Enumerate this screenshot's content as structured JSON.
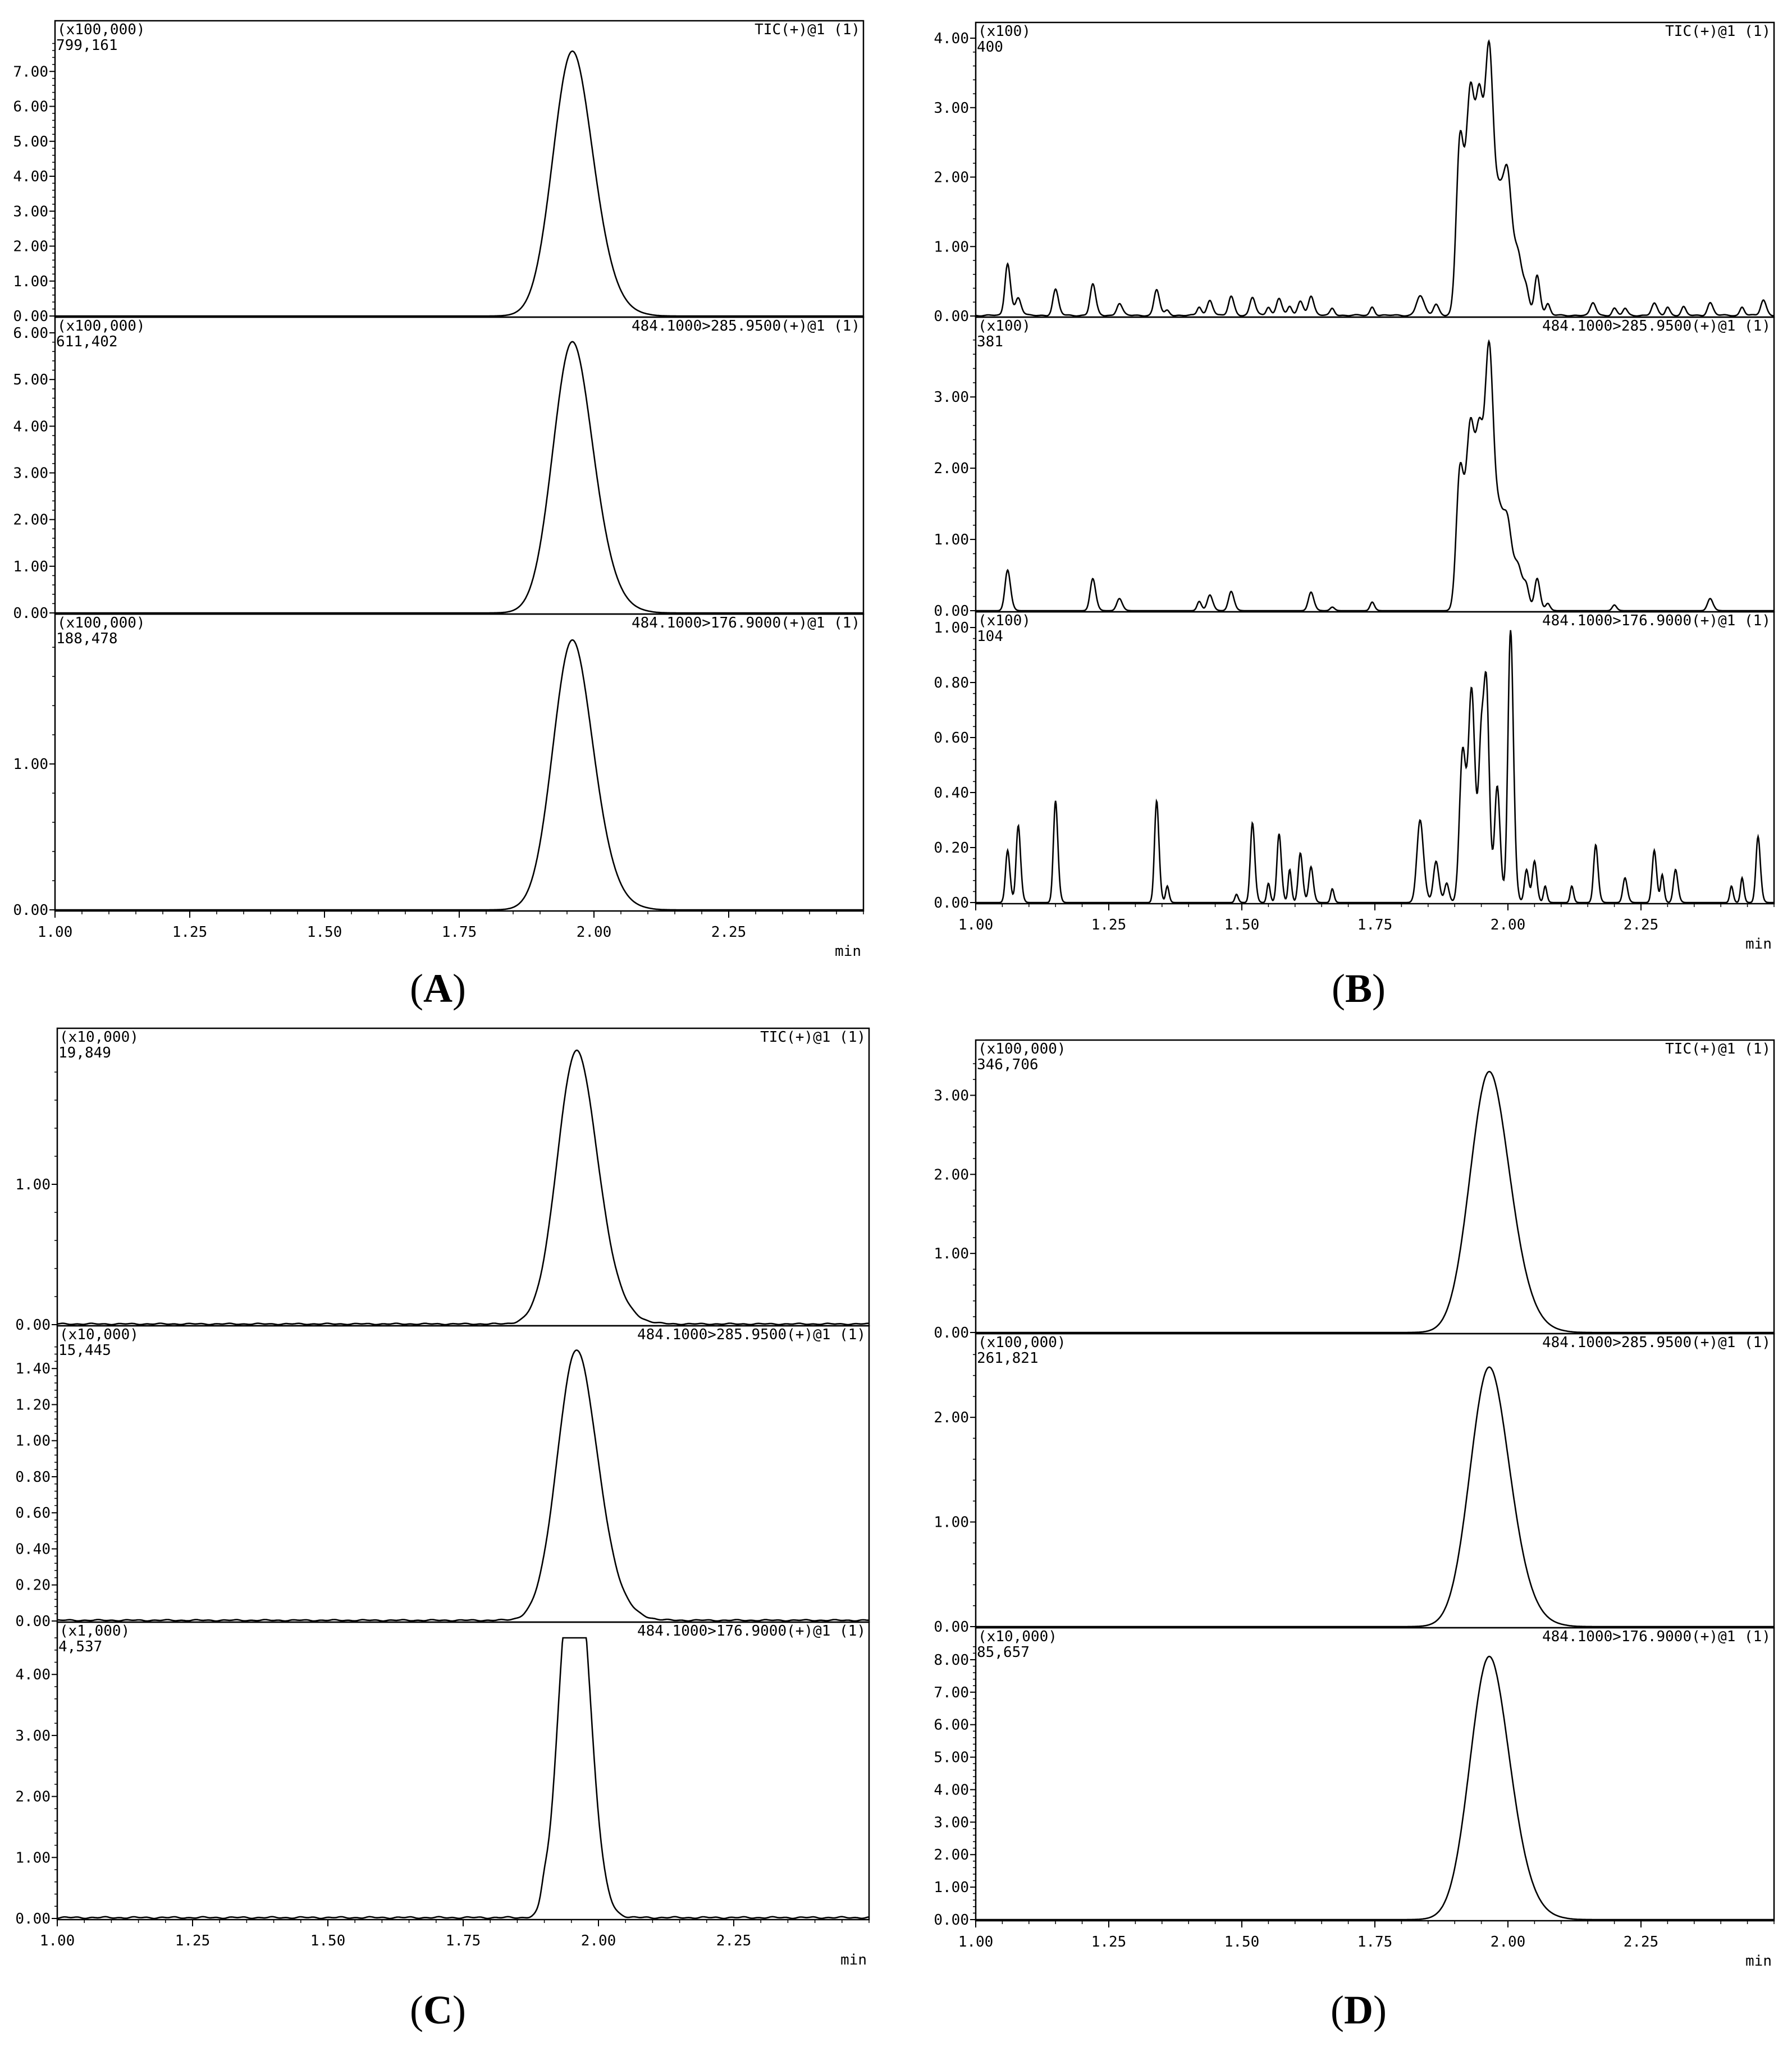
{
  "chart_data": [
    {
      "type": "line",
      "panel_label": "A",
      "x_unit": "min",
      "xlim": [
        1.0,
        2.5
      ],
      "x_ticks": [
        "1.00",
        "1.25",
        "1.50",
        "1.75",
        "2.00",
        "2.25"
      ],
      "grid": false,
      "subplots": [
        {
          "multiplier": "(x100,000)",
          "max_intensity": "799,161",
          "channel": "TIC(+)@1 (1)",
          "ylim": [
            0,
            8.0
          ],
          "y_ticks": [
            "0.00",
            "1.00",
            "2.00",
            "3.00",
            "4.00",
            "5.00",
            "6.00",
            "7.00"
          ],
          "peaks": [
            {
              "rt": 1.96,
              "height": 7.58,
              "width": 0.036
            }
          ],
          "noise": 0
        },
        {
          "multiplier": "(x100,000)",
          "max_intensity": "611,402",
          "channel": "484.1000>285.9500(+)@1 (1)",
          "ylim": [
            0,
            6.0
          ],
          "y_ticks": [
            "0.00",
            "1.00",
            "2.00",
            "3.00",
            "4.00",
            "5.00",
            "6.00"
          ],
          "peaks": [
            {
              "rt": 1.96,
              "height": 5.81,
              "width": 0.036
            }
          ],
          "noise": 0
        },
        {
          "multiplier": "(x100,000)",
          "max_intensity": "188,478",
          "channel": "484.1000>176.9000(+)@1 (1)",
          "ylim": [
            0,
            1.92
          ],
          "y_ticks": [
            "0.00",
            "1.00"
          ],
          "peaks": [
            {
              "rt": 1.96,
              "height": 1.85,
              "width": 0.036
            }
          ],
          "noise": 0
        }
      ]
    },
    {
      "type": "line",
      "panel_label": "B",
      "x_unit": "min",
      "xlim": [
        1.0,
        2.5
      ],
      "x_ticks": [
        "1.00",
        "1.25",
        "1.50",
        "1.75",
        "2.00",
        "2.25"
      ],
      "grid": false,
      "subplots": [
        {
          "multiplier": "(x100)",
          "max_intensity": "400",
          "channel": "TIC(+)@1 (1)",
          "ylim": [
            0,
            4.0
          ],
          "y_ticks": [
            "0.00",
            "1.00",
            "2.00",
            "3.00",
            "4.00"
          ],
          "peaks": [
            {
              "rt": 1.06,
              "height": 0.75,
              "width": 0.005
            },
            {
              "rt": 1.08,
              "height": 0.25,
              "width": 0.005
            },
            {
              "rt": 1.15,
              "height": 0.37,
              "width": 0.005
            },
            {
              "rt": 1.22,
              "height": 0.45,
              "width": 0.005
            },
            {
              "rt": 1.27,
              "height": 0.17,
              "width": 0.005
            },
            {
              "rt": 1.34,
              "height": 0.37,
              "width": 0.005
            },
            {
              "rt": 1.36,
              "height": 0.07,
              "width": 0.004
            },
            {
              "rt": 1.42,
              "height": 0.12,
              "width": 0.004
            },
            {
              "rt": 1.44,
              "height": 0.22,
              "width": 0.005
            },
            {
              "rt": 1.48,
              "height": 0.27,
              "width": 0.005
            },
            {
              "rt": 1.52,
              "height": 0.26,
              "width": 0.005
            },
            {
              "rt": 1.55,
              "height": 0.12,
              "width": 0.004
            },
            {
              "rt": 1.57,
              "height": 0.25,
              "width": 0.005
            },
            {
              "rt": 1.59,
              "height": 0.12,
              "width": 0.004
            },
            {
              "rt": 1.61,
              "height": 0.2,
              "width": 0.005
            },
            {
              "rt": 1.63,
              "height": 0.28,
              "width": 0.005
            },
            {
              "rt": 1.67,
              "height": 0.1,
              "width": 0.004
            },
            {
              "rt": 1.745,
              "height": 0.12,
              "width": 0.004
            },
            {
              "rt": 1.835,
              "height": 0.28,
              "width": 0.007
            },
            {
              "rt": 1.865,
              "height": 0.16,
              "width": 0.005
            },
            {
              "rt": 1.91,
              "height": 2.5,
              "width": 0.007
            },
            {
              "rt": 1.93,
              "height": 3.1,
              "width": 0.008
            },
            {
              "rt": 1.947,
              "height": 2.5,
              "width": 0.007
            },
            {
              "rt": 1.965,
              "height": 3.65,
              "width": 0.008
            },
            {
              "rt": 1.985,
              "height": 1.3,
              "width": 0.008
            },
            {
              "rt": 2.0,
              "height": 1.75,
              "width": 0.008
            },
            {
              "rt": 2.02,
              "height": 0.75,
              "width": 0.008
            },
            {
              "rt": 2.035,
              "height": 0.25,
              "width": 0.005
            },
            {
              "rt": 2.055,
              "height": 0.58,
              "width": 0.005
            },
            {
              "rt": 2.075,
              "height": 0.16,
              "width": 0.004
            },
            {
              "rt": 2.16,
              "height": 0.18,
              "width": 0.005
            },
            {
              "rt": 2.2,
              "height": 0.1,
              "width": 0.004
            },
            {
              "rt": 2.22,
              "height": 0.1,
              "width": 0.004
            },
            {
              "rt": 2.275,
              "height": 0.17,
              "width": 0.005
            },
            {
              "rt": 2.3,
              "height": 0.12,
              "width": 0.004
            },
            {
              "rt": 2.33,
              "height": 0.12,
              "width": 0.004
            },
            {
              "rt": 2.38,
              "height": 0.18,
              "width": 0.005
            },
            {
              "rt": 2.44,
              "height": 0.12,
              "width": 0.004
            },
            {
              "rt": 2.48,
              "height": 0.22,
              "width": 0.005
            }
          ],
          "noise": 0.02
        },
        {
          "multiplier": "(x100)",
          "max_intensity": "381",
          "channel": "484.1000>285.9500(+)@1 (1)",
          "ylim": [
            0,
            3.9
          ],
          "y_ticks": [
            "0.00",
            "1.00",
            "2.00",
            "3.00"
          ],
          "peaks": [
            {
              "rt": 1.06,
              "height": 0.57,
              "width": 0.005
            },
            {
              "rt": 1.22,
              "height": 0.45,
              "width": 0.005
            },
            {
              "rt": 1.27,
              "height": 0.17,
              "width": 0.005
            },
            {
              "rt": 1.42,
              "height": 0.13,
              "width": 0.004
            },
            {
              "rt": 1.44,
              "height": 0.22,
              "width": 0.005
            },
            {
              "rt": 1.48,
              "height": 0.27,
              "width": 0.005
            },
            {
              "rt": 1.63,
              "height": 0.26,
              "width": 0.005
            },
            {
              "rt": 1.67,
              "height": 0.05,
              "width": 0.004
            },
            {
              "rt": 1.745,
              "height": 0.12,
              "width": 0.004
            },
            {
              "rt": 1.91,
              "height": 1.95,
              "width": 0.007
            },
            {
              "rt": 1.93,
              "height": 2.5,
              "width": 0.008
            },
            {
              "rt": 1.947,
              "height": 2.0,
              "width": 0.007
            },
            {
              "rt": 1.965,
              "height": 3.55,
              "width": 0.008
            },
            {
              "rt": 1.985,
              "height": 1.0,
              "width": 0.008
            },
            {
              "rt": 2.0,
              "height": 1.05,
              "width": 0.008
            },
            {
              "rt": 2.02,
              "height": 0.55,
              "width": 0.008
            },
            {
              "rt": 2.035,
              "height": 0.25,
              "width": 0.005
            },
            {
              "rt": 2.055,
              "height": 0.45,
              "width": 0.005
            },
            {
              "rt": 2.075,
              "height": 0.1,
              "width": 0.004
            },
            {
              "rt": 2.2,
              "height": 0.08,
              "width": 0.004
            },
            {
              "rt": 2.38,
              "height": 0.17,
              "width": 0.005
            }
          ],
          "noise": 0
        },
        {
          "multiplier": "(x100)",
          "max_intensity": "104",
          "channel": "484.1000>176.9000(+)@1 (1)",
          "ylim": [
            0,
            1.0
          ],
          "y_ticks": [
            "0.00",
            "0.20",
            "0.40",
            "0.60",
            "0.80",
            "1.00"
          ],
          "peaks": [
            {
              "rt": 1.06,
              "height": 0.19,
              "width": 0.004
            },
            {
              "rt": 1.08,
              "height": 0.28,
              "width": 0.004
            },
            {
              "rt": 1.15,
              "height": 0.37,
              "width": 0.004
            },
            {
              "rt": 1.34,
              "height": 0.37,
              "width": 0.004
            },
            {
              "rt": 1.36,
              "height": 0.06,
              "width": 0.003
            },
            {
              "rt": 1.49,
              "height": 0.03,
              "width": 0.003
            },
            {
              "rt": 1.52,
              "height": 0.29,
              "width": 0.004
            },
            {
              "rt": 1.55,
              "height": 0.07,
              "width": 0.003
            },
            {
              "rt": 1.57,
              "height": 0.25,
              "width": 0.004
            },
            {
              "rt": 1.59,
              "height": 0.12,
              "width": 0.003
            },
            {
              "rt": 1.61,
              "height": 0.18,
              "width": 0.004
            },
            {
              "rt": 1.63,
              "height": 0.13,
              "width": 0.004
            },
            {
              "rt": 1.67,
              "height": 0.05,
              "width": 0.003
            },
            {
              "rt": 1.835,
              "height": 0.3,
              "width": 0.006
            },
            {
              "rt": 1.865,
              "height": 0.15,
              "width": 0.005
            },
            {
              "rt": 1.885,
              "height": 0.07,
              "width": 0.004
            },
            {
              "rt": 1.915,
              "height": 0.55,
              "width": 0.006
            },
            {
              "rt": 1.932,
              "height": 0.75,
              "width": 0.006
            },
            {
              "rt": 1.95,
              "height": 0.55,
              "width": 0.005
            },
            {
              "rt": 1.96,
              "height": 0.7,
              "width": 0.005
            },
            {
              "rt": 1.98,
              "height": 0.42,
              "width": 0.005
            },
            {
              "rt": 2.005,
              "height": 0.99,
              "width": 0.005
            },
            {
              "rt": 2.035,
              "height": 0.12,
              "width": 0.004
            },
            {
              "rt": 2.05,
              "height": 0.15,
              "width": 0.004
            },
            {
              "rt": 2.07,
              "height": 0.06,
              "width": 0.003
            },
            {
              "rt": 2.12,
              "height": 0.06,
              "width": 0.003
            },
            {
              "rt": 2.165,
              "height": 0.21,
              "width": 0.004
            },
            {
              "rt": 2.22,
              "height": 0.09,
              "width": 0.004
            },
            {
              "rt": 2.275,
              "height": 0.19,
              "width": 0.004
            },
            {
              "rt": 2.29,
              "height": 0.1,
              "width": 0.003
            },
            {
              "rt": 2.315,
              "height": 0.12,
              "width": 0.004
            },
            {
              "rt": 2.42,
              "height": 0.06,
              "width": 0.003
            },
            {
              "rt": 2.44,
              "height": 0.09,
              "width": 0.003
            },
            {
              "rt": 2.47,
              "height": 0.24,
              "width": 0.004
            }
          ],
          "noise": 0
        }
      ]
    },
    {
      "type": "line",
      "panel_label": "C",
      "x_unit": "min",
      "xlim": [
        1.0,
        2.5
      ],
      "x_ticks": [
        "1.00",
        "1.25",
        "1.50",
        "1.75",
        "2.00",
        "2.25"
      ],
      "grid": false,
      "subplots": [
        {
          "multiplier": "(x10,000)",
          "max_intensity": "19,849",
          "channel": "TIC(+)@1 (1)",
          "ylim": [
            0,
            2.0
          ],
          "y_ticks": [
            "0.00",
            "1.00"
          ],
          "peaks": [
            {
              "rt": 1.96,
              "height": 1.95,
              "width": 0.036
            }
          ],
          "noise": 0.01
        },
        {
          "multiplier": "(x10,000)",
          "max_intensity": "15,445",
          "channel": "484.1000>285.9500(+)@1 (1)",
          "ylim": [
            0,
            1.55
          ],
          "y_ticks": [
            "0.00",
            "0.20",
            "0.40",
            "0.60",
            "0.80",
            "1.00",
            "1.20",
            "1.40"
          ],
          "peaks": [
            {
              "rt": 1.96,
              "height": 1.5,
              "width": 0.036
            }
          ],
          "noise": 0.008
        },
        {
          "multiplier": "(x1,000)",
          "max_intensity": "4,537",
          "channel": "484.1000>176.9000(+)@1 (1)",
          "ylim": [
            0,
            4.6
          ],
          "y_ticks": [
            "0.00",
            "1.00",
            "2.00",
            "3.00",
            "4.00"
          ],
          "peaks": [
            {
              "rt": 1.94,
              "height": 4.0,
              "width": 0.02
            },
            {
              "rt": 1.97,
              "height": 3.9,
              "width": 0.02
            },
            {
              "rt": 1.9,
              "height": 0.25,
              "width": 0.006
            }
          ],
          "noise": 0.03
        }
      ]
    },
    {
      "type": "line",
      "panel_label": "D",
      "x_unit": "min",
      "xlim": [
        1.0,
        2.5
      ],
      "x_ticks": [
        "1.00",
        "1.25",
        "1.50",
        "1.75",
        "2.00",
        "2.25"
      ],
      "grid": false,
      "subplots": [
        {
          "multiplier": "(x100,000)",
          "max_intensity": "346,706",
          "channel": "TIC(+)@1 (1)",
          "ylim": [
            0,
            3.5
          ],
          "y_ticks": [
            "0.00",
            "1.00",
            "2.00",
            "3.00"
          ],
          "peaks": [
            {
              "rt": 1.965,
              "height": 3.3,
              "width": 0.036
            }
          ],
          "noise": 0
        },
        {
          "multiplier": "(x100,000)",
          "max_intensity": "261,821",
          "channel": "484.1000>285.9500(+)@1 (1)",
          "ylim": [
            0,
            2.65
          ],
          "y_ticks": [
            "0.00",
            "1.00",
            "2.00"
          ],
          "peaks": [
            {
              "rt": 1.965,
              "height": 2.48,
              "width": 0.036
            }
          ],
          "noise": 0
        },
        {
          "multiplier": "(x10,000)",
          "max_intensity": "85,657",
          "channel": "484.1000>176.9000(+)@1 (1)",
          "ylim": [
            0,
            8.5
          ],
          "y_ticks": [
            "0.00",
            "1.00",
            "2.00",
            "3.00",
            "4.00",
            "5.00",
            "6.00",
            "7.00",
            "8.00"
          ],
          "peaks": [
            {
              "rt": 1.965,
              "height": 8.1,
              "width": 0.036
            }
          ],
          "noise": 0
        }
      ]
    }
  ]
}
